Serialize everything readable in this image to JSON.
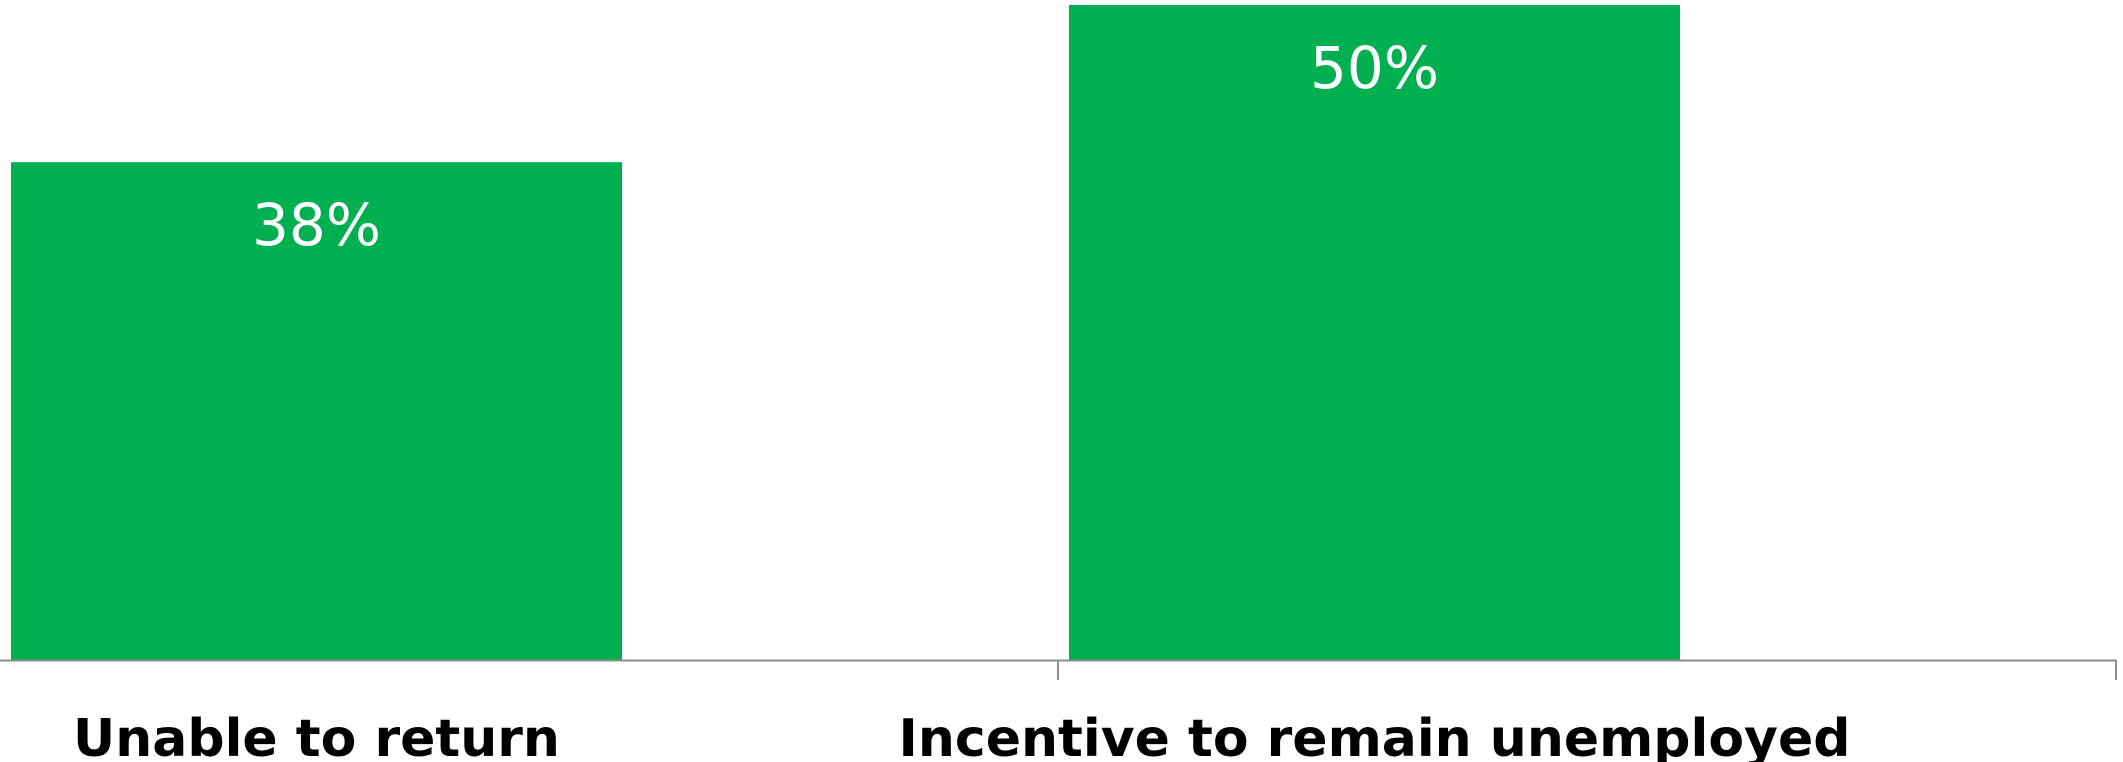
{
  "chart_data": {
    "type": "bar",
    "categories": [
      "Unable to return",
      "Incentive to remain unemployed"
    ],
    "values": [
      38,
      50
    ],
    "value_labels": [
      "38%",
      "50%"
    ],
    "ylim": [
      0,
      50
    ],
    "grid": false,
    "legend": "none",
    "bar_color": "#00B050",
    "value_label_color": "#FFFFFF",
    "category_label_color": "#000000",
    "axis_color": "#8C8C8C"
  }
}
